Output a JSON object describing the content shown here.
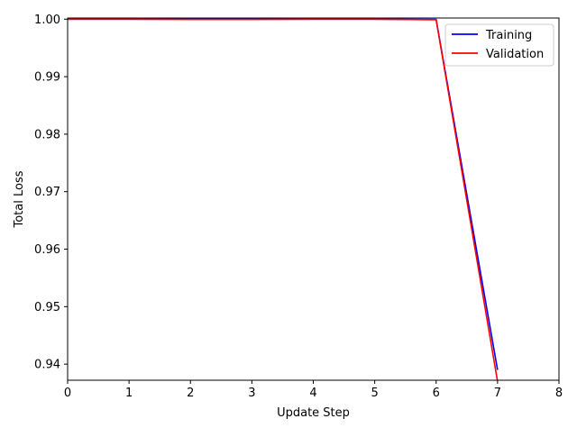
{
  "chart_data": {
    "type": "line",
    "title": "",
    "xlabel": "Update Step",
    "ylabel": "Total Loss",
    "xlim": [
      0,
      8
    ],
    "ylim": [
      0.9372,
      1.0002
    ],
    "xticks": [
      0,
      1,
      2,
      3,
      4,
      5,
      6,
      7,
      8
    ],
    "xtick_labels": [
      "0",
      "1",
      "2",
      "3",
      "4",
      "5",
      "6",
      "7",
      "8"
    ],
    "yticks": [
      0.94,
      0.95,
      0.96,
      0.97,
      0.98,
      0.99,
      1.0
    ],
    "ytick_labels": [
      "0.94",
      "0.95",
      "0.96",
      "0.97",
      "0.98",
      "0.99",
      "1.00"
    ],
    "grid": false,
    "legend_position": "top-right",
    "series": [
      {
        "name": "Training",
        "color": "#0000ff",
        "x": [
          0,
          1,
          2,
          3,
          4,
          5,
          6,
          7
        ],
        "y": [
          1.0,
          1.0,
          1.0,
          1.0,
          1.0,
          1.0,
          0.99995,
          0.939
        ]
      },
      {
        "name": "Validation",
        "color": "#ff0000",
        "x": [
          0,
          1,
          2,
          3,
          4,
          5,
          6,
          7
        ],
        "y": [
          1.0,
          1.0,
          0.99995,
          0.99995,
          1.0,
          1.0,
          0.9999,
          0.937
        ]
      }
    ]
  }
}
